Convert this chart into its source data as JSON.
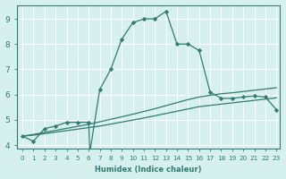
{
  "xlabel": "Humidex (Indice chaleur)",
  "bg_color": "#d6efef",
  "grid_color": "#ffffff",
  "line_color": "#2e7d6e",
  "xlim_min": -0.5,
  "xlim_max": 23.3,
  "ylim_min": 3.85,
  "ylim_max": 9.55,
  "xticks": [
    0,
    1,
    2,
    3,
    4,
    5,
    6,
    7,
    8,
    9,
    10,
    11,
    12,
    13,
    14,
    15,
    16,
    17,
    18,
    19,
    20,
    21,
    22,
    23
  ],
  "yticks": [
    4,
    5,
    6,
    7,
    8,
    9
  ],
  "line1_x": [
    0,
    1,
    2,
    3,
    4,
    5,
    6,
    6.1,
    7,
    8,
    9,
    10,
    11,
    12,
    13,
    14,
    15,
    16,
    17,
    18,
    19,
    20,
    21,
    22,
    23
  ],
  "line1_y": [
    4.35,
    4.15,
    4.65,
    4.75,
    4.9,
    4.9,
    4.9,
    3.7,
    6.2,
    7.0,
    8.2,
    8.85,
    9.0,
    9.0,
    9.3,
    8.0,
    8.0,
    7.75,
    6.1,
    5.85,
    5.85,
    5.9,
    5.95,
    5.9,
    5.4
  ],
  "line2_x": [
    0,
    1,
    2,
    3,
    4,
    5,
    6,
    7,
    8,
    9,
    10,
    11,
    12,
    13,
    14,
    15,
    16,
    17,
    18,
    19,
    20,
    21,
    22,
    23
  ],
  "line2_y": [
    4.35,
    4.42,
    4.5,
    4.58,
    4.66,
    4.74,
    4.82,
    4.92,
    5.02,
    5.12,
    5.22,
    5.33,
    5.44,
    5.56,
    5.68,
    5.8,
    5.9,
    5.97,
    6.03,
    6.07,
    6.12,
    6.17,
    6.22,
    6.27
  ],
  "line3_x": [
    0,
    1,
    2,
    3,
    4,
    5,
    6,
    7,
    8,
    9,
    10,
    11,
    12,
    13,
    14,
    15,
    16,
    17,
    18,
    19,
    20,
    21,
    22,
    23
  ],
  "line3_y": [
    4.35,
    4.39,
    4.45,
    4.51,
    4.57,
    4.63,
    4.69,
    4.75,
    4.83,
    4.91,
    4.99,
    5.07,
    5.16,
    5.25,
    5.34,
    5.43,
    5.52,
    5.57,
    5.62,
    5.67,
    5.72,
    5.77,
    5.82,
    5.87
  ]
}
